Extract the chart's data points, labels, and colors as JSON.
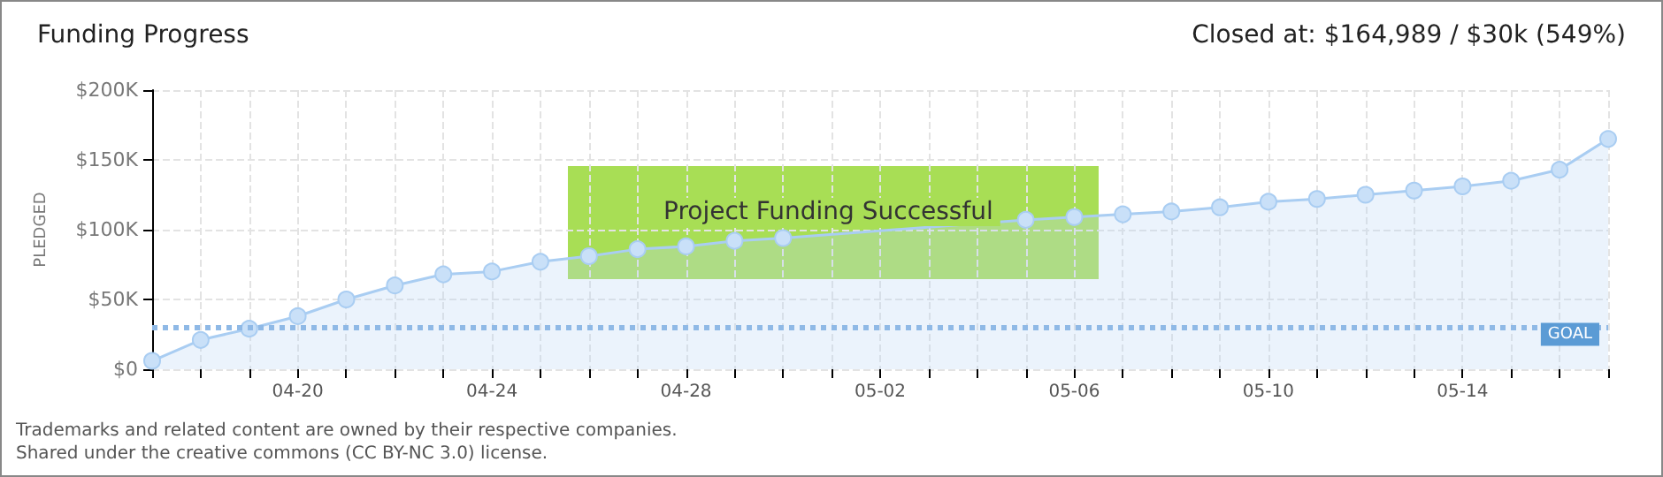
{
  "chart_data": {
    "type": "area",
    "title": "Funding Progress",
    "subtitle": "Closed at: $164,989 / $30k (549%)",
    "ylabel": "PLEDGED",
    "categories": [
      null,
      null,
      null,
      "04-20",
      null,
      null,
      null,
      "04-24",
      null,
      null,
      null,
      "04-28",
      null,
      null,
      null,
      "05-02",
      null,
      null,
      null,
      "05-06",
      null,
      null,
      null,
      "05-10",
      null,
      null,
      null,
      "05-14",
      null,
      null,
      null
    ],
    "series": [
      {
        "color": "#a9cdf2",
        "values": [
          6,
          21,
          29,
          38,
          50,
          60,
          68,
          70,
          77,
          81,
          86,
          88,
          92,
          94,
          null,
          null,
          null,
          null,
          107,
          109,
          111,
          113,
          116,
          120,
          122,
          125,
          128,
          131,
          135,
          143,
          165
        ]
      }
    ],
    "ylim": [
      0,
      200
    ],
    "yticks": [
      {
        "value": 0,
        "label": "$0"
      },
      {
        "value": 50,
        "label": "$50K"
      },
      {
        "value": 100,
        "label": "$100K"
      },
      {
        "value": 150,
        "label": "$150K"
      },
      {
        "value": 200,
        "label": "$200K"
      }
    ],
    "ref_lines": [
      {
        "axis": "y",
        "value": 30,
        "label": "GOAL",
        "color": "#8fb9e6",
        "line_style": "dotted"
      }
    ],
    "annotations": [
      "Project Funding Successful",
      "Trademarks and related content are owned by their respective companies.",
      "Shared under the creative commons (CC BY-NC 3.0) license."
    ],
    "grid": true,
    "marker": "circle",
    "line_style": "solid"
  }
}
